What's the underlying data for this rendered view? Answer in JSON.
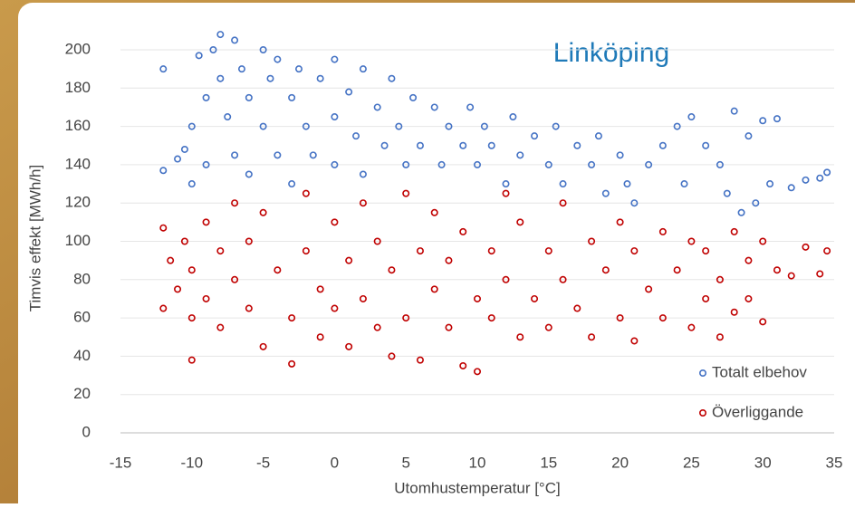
{
  "chart_data": {
    "type": "scatter",
    "title": "Linköping",
    "xlabel": "Utomhustemperatur [°C]",
    "ylabel": "Timvis effekt [MWh/h]",
    "xlim": [
      -15,
      35
    ],
    "xticks": [
      -15,
      -10,
      -5,
      0,
      5,
      10,
      15,
      20,
      25,
      30,
      35
    ],
    "ylim": [
      0,
      210
    ],
    "yticks": [
      0,
      20,
      40,
      60,
      80,
      100,
      120,
      140,
      160,
      180,
      200
    ],
    "grid": true,
    "legend": "lower right",
    "series": [
      {
        "name": "Totalt elbehov",
        "color": "#4472c4",
        "x": [
          -12,
          -12,
          -11,
          -10.5,
          -10,
          -10,
          -9.5,
          -9,
          -9,
          -8.5,
          -8,
          -8,
          -7.5,
          -7,
          -7,
          -6.5,
          -6,
          -6,
          -5,
          -5,
          -4.5,
          -4,
          -4,
          -3,
          -3,
          -2.5,
          -2,
          -1.5,
          -1,
          0,
          0,
          0,
          1,
          1.5,
          2,
          2,
          3,
          3.5,
          4,
          4.5,
          5,
          5.5,
          6,
          7,
          7.5,
          8,
          9,
          9.5,
          10,
          10.5,
          11,
          12,
          12.5,
          13,
          14,
          15,
          15.5,
          16,
          17,
          18,
          18.5,
          19,
          20,
          20.5,
          21,
          22,
          23,
          24,
          24.5,
          25,
          26,
          27,
          27.5,
          28,
          28.5,
          29,
          29.5,
          30,
          30.5,
          31,
          32,
          33,
          34,
          34.5
        ],
        "values": [
          190,
          137,
          143,
          148,
          130,
          160,
          197,
          175,
          140,
          200,
          208,
          185,
          165,
          205,
          145,
          190,
          175,
          135,
          200,
          160,
          185,
          145,
          195,
          175,
          130,
          190,
          160,
          145,
          185,
          195,
          165,
          140,
          178,
          155,
          190,
          135,
          170,
          150,
          185,
          160,
          140,
          175,
          150,
          170,
          140,
          160,
          150,
          170,
          140,
          160,
          150,
          130,
          165,
          145,
          155,
          140,
          160,
          130,
          150,
          140,
          155,
          125,
          145,
          130,
          120,
          140,
          150,
          160,
          130,
          165,
          150,
          140,
          125,
          168,
          115,
          155,
          120,
          163,
          130,
          164,
          128,
          132,
          133,
          136
        ]
      },
      {
        "name": "Överliggande",
        "color": "#c00000",
        "x": [
          -12,
          -12,
          -11.5,
          -11,
          -10.5,
          -10,
          -10,
          -10,
          -9,
          -9,
          -8,
          -8,
          -7,
          -7,
          -6,
          -6,
          -5,
          -5,
          -4,
          -3,
          -3,
          -2,
          -2,
          -1,
          -1,
          0,
          0,
          1,
          1,
          2,
          2,
          3,
          3,
          4,
          4,
          5,
          5,
          6,
          6,
          7,
          7,
          8,
          8,
          9,
          9,
          10,
          10,
          11,
          11,
          12,
          12,
          13,
          13,
          14,
          15,
          15,
          16,
          16,
          17,
          18,
          18,
          19,
          20,
          20,
          21,
          21,
          22,
          23,
          23,
          24,
          25,
          25,
          26,
          26,
          27,
          27,
          28,
          28,
          29,
          29,
          30,
          30,
          31,
          32,
          33,
          34,
          34.5
        ],
        "values": [
          65,
          107,
          90,
          75,
          100,
          38,
          60,
          85,
          110,
          70,
          95,
          55,
          120,
          80,
          65,
          100,
          45,
          115,
          85,
          36,
          60,
          125,
          95,
          50,
          75,
          110,
          65,
          90,
          45,
          120,
          70,
          100,
          55,
          85,
          40,
          125,
          60,
          95,
          38,
          75,
          115,
          55,
          90,
          35,
          105,
          70,
          32,
          95,
          60,
          125,
          80,
          50,
          110,
          70,
          95,
          55,
          120,
          80,
          65,
          100,
          50,
          85,
          110,
          60,
          95,
          48,
          75,
          105,
          60,
          85,
          55,
          100,
          70,
          95,
          50,
          80,
          105,
          63,
          90,
          70,
          58,
          100,
          85,
          82,
          97,
          83,
          95
        ]
      }
    ]
  }
}
